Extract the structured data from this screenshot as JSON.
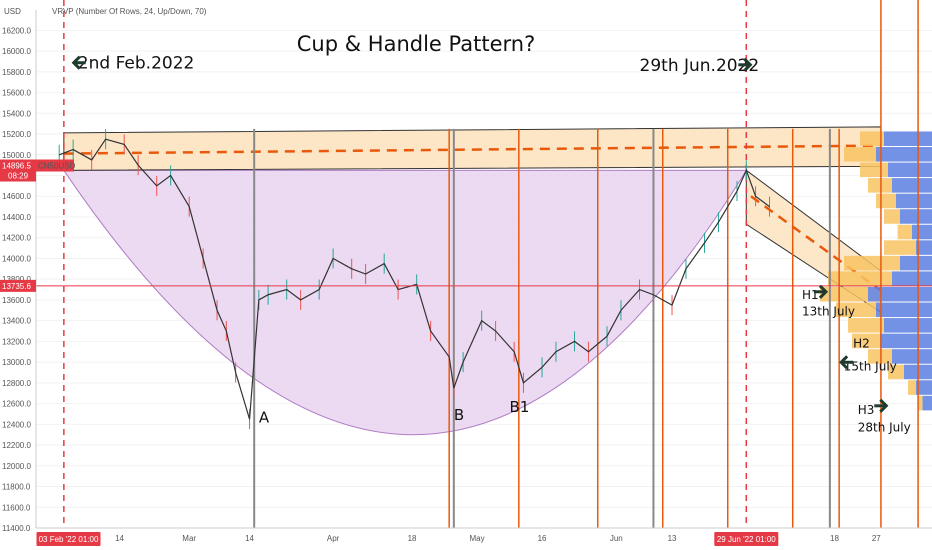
{
  "header": {
    "unit": "USD",
    "indicator": "VRVP (Number Of Rows, 24, Up/Down, 70)"
  },
  "chart_data": {
    "type": "line",
    "title": "Cup & Handle Pattern?",
    "symbol_label": "CN50USD",
    "price_badges": [
      {
        "label": "14896.5",
        "sub": "08:29",
        "y": 14896.5,
        "color": "#e63946"
      },
      {
        "label": "13735.6",
        "y": 13735.6,
        "color": "#e63946"
      }
    ],
    "ylim": [
      11400,
      16300
    ],
    "y_ticks": [
      11400,
      11600,
      11800,
      12000,
      12200,
      12400,
      12600,
      12800,
      13000,
      13200,
      13400,
      13600,
      13800,
      14000,
      14200,
      14400,
      14600,
      14800,
      15000,
      15200,
      15400,
      15600,
      15800,
      16000,
      16200
    ],
    "x_range": [
      "2022-01-27",
      "2022-08-08"
    ],
    "x_ticks": [
      {
        "label": "14",
        "x": "2022-02-14"
      },
      {
        "label": "Mar",
        "x": "2022-03-01"
      },
      {
        "label": "14",
        "x": "2022-03-14"
      },
      {
        "label": "Apr",
        "x": "2022-04-01"
      },
      {
        "label": "18",
        "x": "2022-04-18"
      },
      {
        "label": "May",
        "x": "2022-05-02"
      },
      {
        "label": "16",
        "x": "2022-05-16"
      },
      {
        "label": "Jun",
        "x": "2022-06-01"
      },
      {
        "label": "13",
        "x": "2022-06-13"
      },
      {
        "label": "18",
        "x": "2022-07-18"
      },
      {
        "label": "27",
        "x": "2022-07-27"
      }
    ],
    "date_badges": [
      {
        "label": "03 Feb '22   01:00",
        "x": "2022-02-03"
      },
      {
        "label": "29 Jun '22   01:00",
        "x": "2022-06-29"
      }
    ],
    "series": [
      {
        "x": [
          "2022-02-01",
          "2022-02-04",
          "2022-02-08",
          "2022-02-11",
          "2022-02-15",
          "2022-02-18",
          "2022-02-22",
          "2022-02-25",
          "2022-03-01",
          "2022-03-04",
          "2022-03-07",
          "2022-03-09",
          "2022-03-11",
          "2022-03-14",
          "2022-03-16",
          "2022-03-18",
          "2022-03-22",
          "2022-03-25",
          "2022-03-29",
          "2022-04-01",
          "2022-04-05",
          "2022-04-08",
          "2022-04-12",
          "2022-04-15",
          "2022-04-19",
          "2022-04-22",
          "2022-04-26",
          "2022-04-27",
          "2022-04-29",
          "2022-05-03",
          "2022-05-06",
          "2022-05-10",
          "2022-05-12",
          "2022-05-16",
          "2022-05-19",
          "2022-05-23",
          "2022-05-26",
          "2022-05-30",
          "2022-06-02",
          "2022-06-06",
          "2022-06-09",
          "2022-06-13",
          "2022-06-16",
          "2022-06-20",
          "2022-06-23",
          "2022-06-27",
          "2022-06-29",
          "2022-07-01",
          "2022-07-04"
        ],
        "values": [
          15000,
          15050,
          14950,
          15150,
          15100,
          14900,
          14700,
          14800,
          14500,
          14000,
          13500,
          13300,
          12900,
          12450,
          13600,
          13650,
          13700,
          13600,
          13700,
          14000,
          13900,
          13850,
          13950,
          13700,
          13750,
          13300,
          13050,
          12750,
          13000,
          13400,
          13300,
          13100,
          12800,
          12950,
          13100,
          13200,
          13100,
          13250,
          13500,
          13700,
          13650,
          13550,
          13900,
          14150,
          14350,
          14650,
          14850,
          14600,
          14500
        ]
      }
    ],
    "pattern": {
      "resistance_zone": [
        14850,
        15250
      ],
      "cup_bottom": {
        "x": "2022-04-20",
        "y": 12300
      }
    },
    "annotations": [
      {
        "text": "2nd Feb.2022",
        "x": "2022-02-05",
        "y": 15830
      },
      {
        "text": "29th Jun.2022",
        "x": "2022-06-06",
        "y": 15810
      },
      {
        "text": "A",
        "x": "2022-03-16",
        "y": 12420
      },
      {
        "text": "B",
        "x": "2022-04-27",
        "y": 12440
      },
      {
        "text": "B1",
        "x": "2022-05-09",
        "y": 12520
      },
      {
        "text": "H1",
        "x": "2022-07-11",
        "y": 13610
      },
      {
        "text": "13th July",
        "x": "2022-07-11",
        "y": 13450
      },
      {
        "text": "H2",
        "x": "2022-07-22",
        "y": 13140
      },
      {
        "text": "15th July",
        "x": "2022-07-20",
        "y": 12920
      },
      {
        "text": "H3",
        "x": "2022-07-23",
        "y": 12500
      },
      {
        "text": "28th July",
        "x": "2022-07-23",
        "y": 12330
      }
    ]
  }
}
